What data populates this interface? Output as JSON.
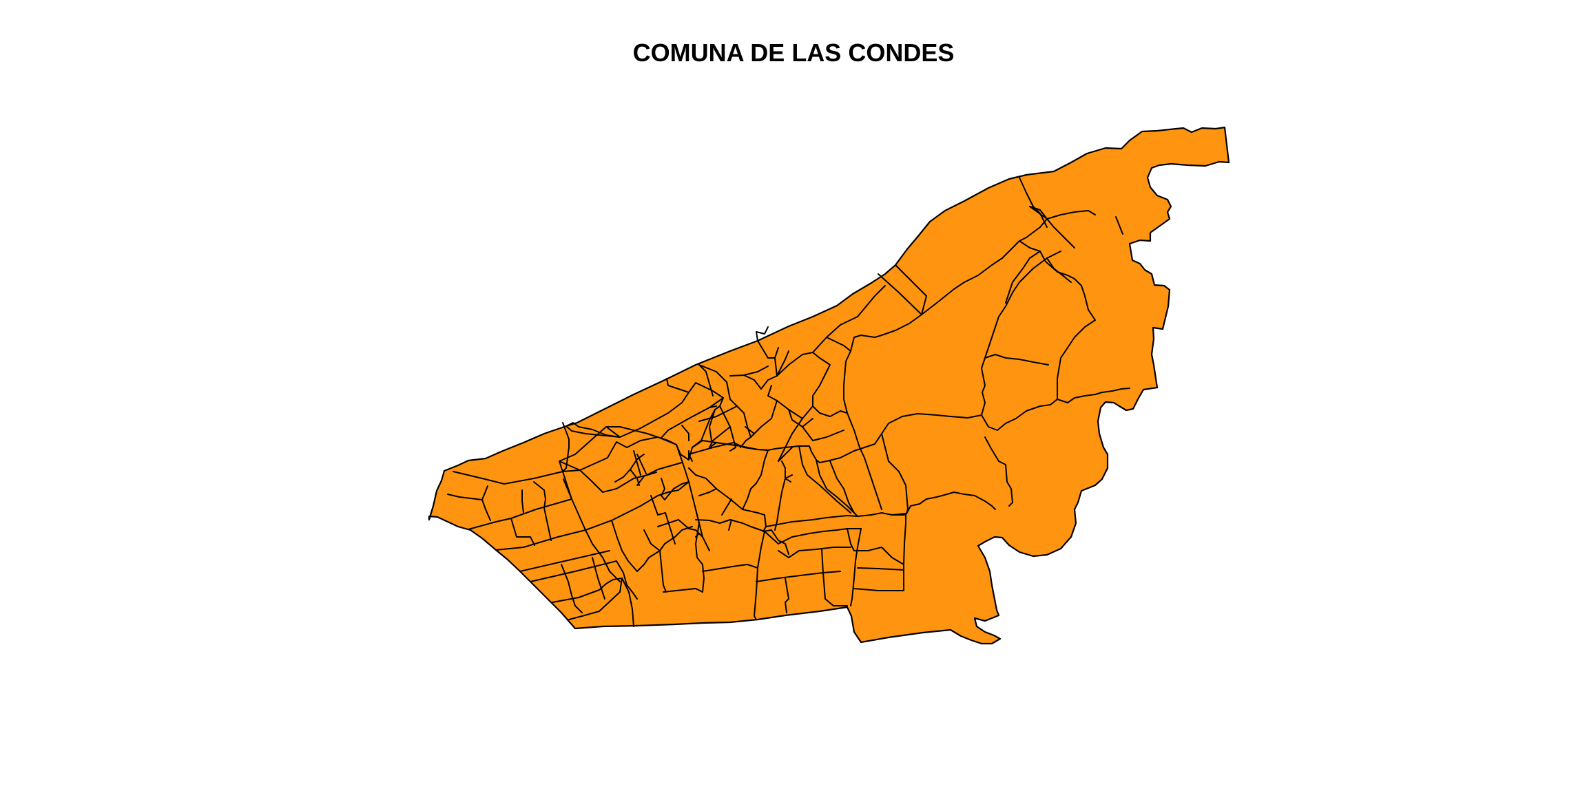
{
  "title": "COMUNA DE LAS CONDES",
  "map": {
    "fill_color": "#FF9410",
    "border_color": "#000000"
  }
}
